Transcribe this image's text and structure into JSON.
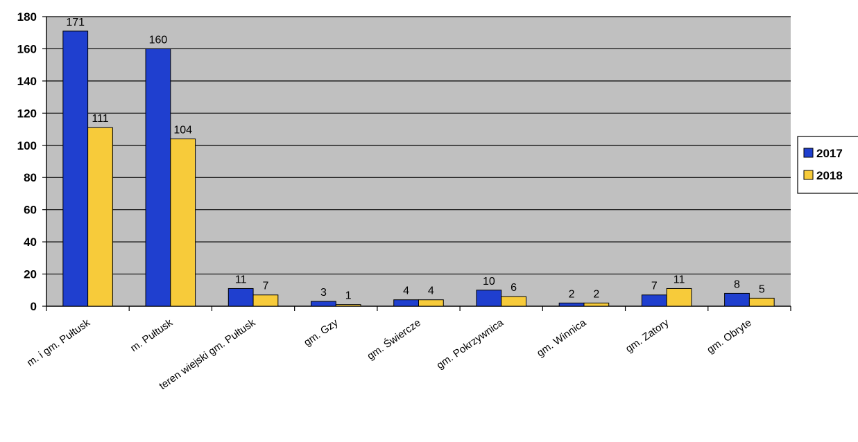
{
  "chart_data": {
    "type": "bar",
    "categories": [
      "m. i gm. Pułtusk",
      "m. Pułtusk",
      "teren wiejski gm. Pułtusk",
      "gm. Gzy",
      "gm. Świercze",
      "gm. Pokrzywnica",
      "gm. Winnica",
      "gm. Zatory",
      "gm. Obryte"
    ],
    "series": [
      {
        "name": "2017",
        "values": [
          171,
          160,
          11,
          3,
          4,
          10,
          2,
          7,
          8
        ],
        "color": "#1f3fcf"
      },
      {
        "name": "2018",
        "values": [
          111,
          104,
          7,
          1,
          4,
          6,
          2,
          11,
          5
        ],
        "color": "#f7cb3a"
      }
    ],
    "data_labels": [
      [
        "171",
        "111"
      ],
      [
        "160",
        "104"
      ],
      [
        "11",
        "7"
      ],
      [
        "3",
        "1"
      ],
      [
        "4",
        "4"
      ],
      [
        "10",
        "6"
      ],
      [
        "2",
        "2"
      ],
      [
        "7",
        "11"
      ],
      [
        "8",
        "5"
      ]
    ],
    "ylim": [
      0,
      180
    ],
    "yticks": [
      0,
      20,
      40,
      60,
      80,
      100,
      120,
      140,
      160,
      180
    ],
    "grid": true,
    "legend": "right",
    "plot_background": "#c0c0c0"
  }
}
